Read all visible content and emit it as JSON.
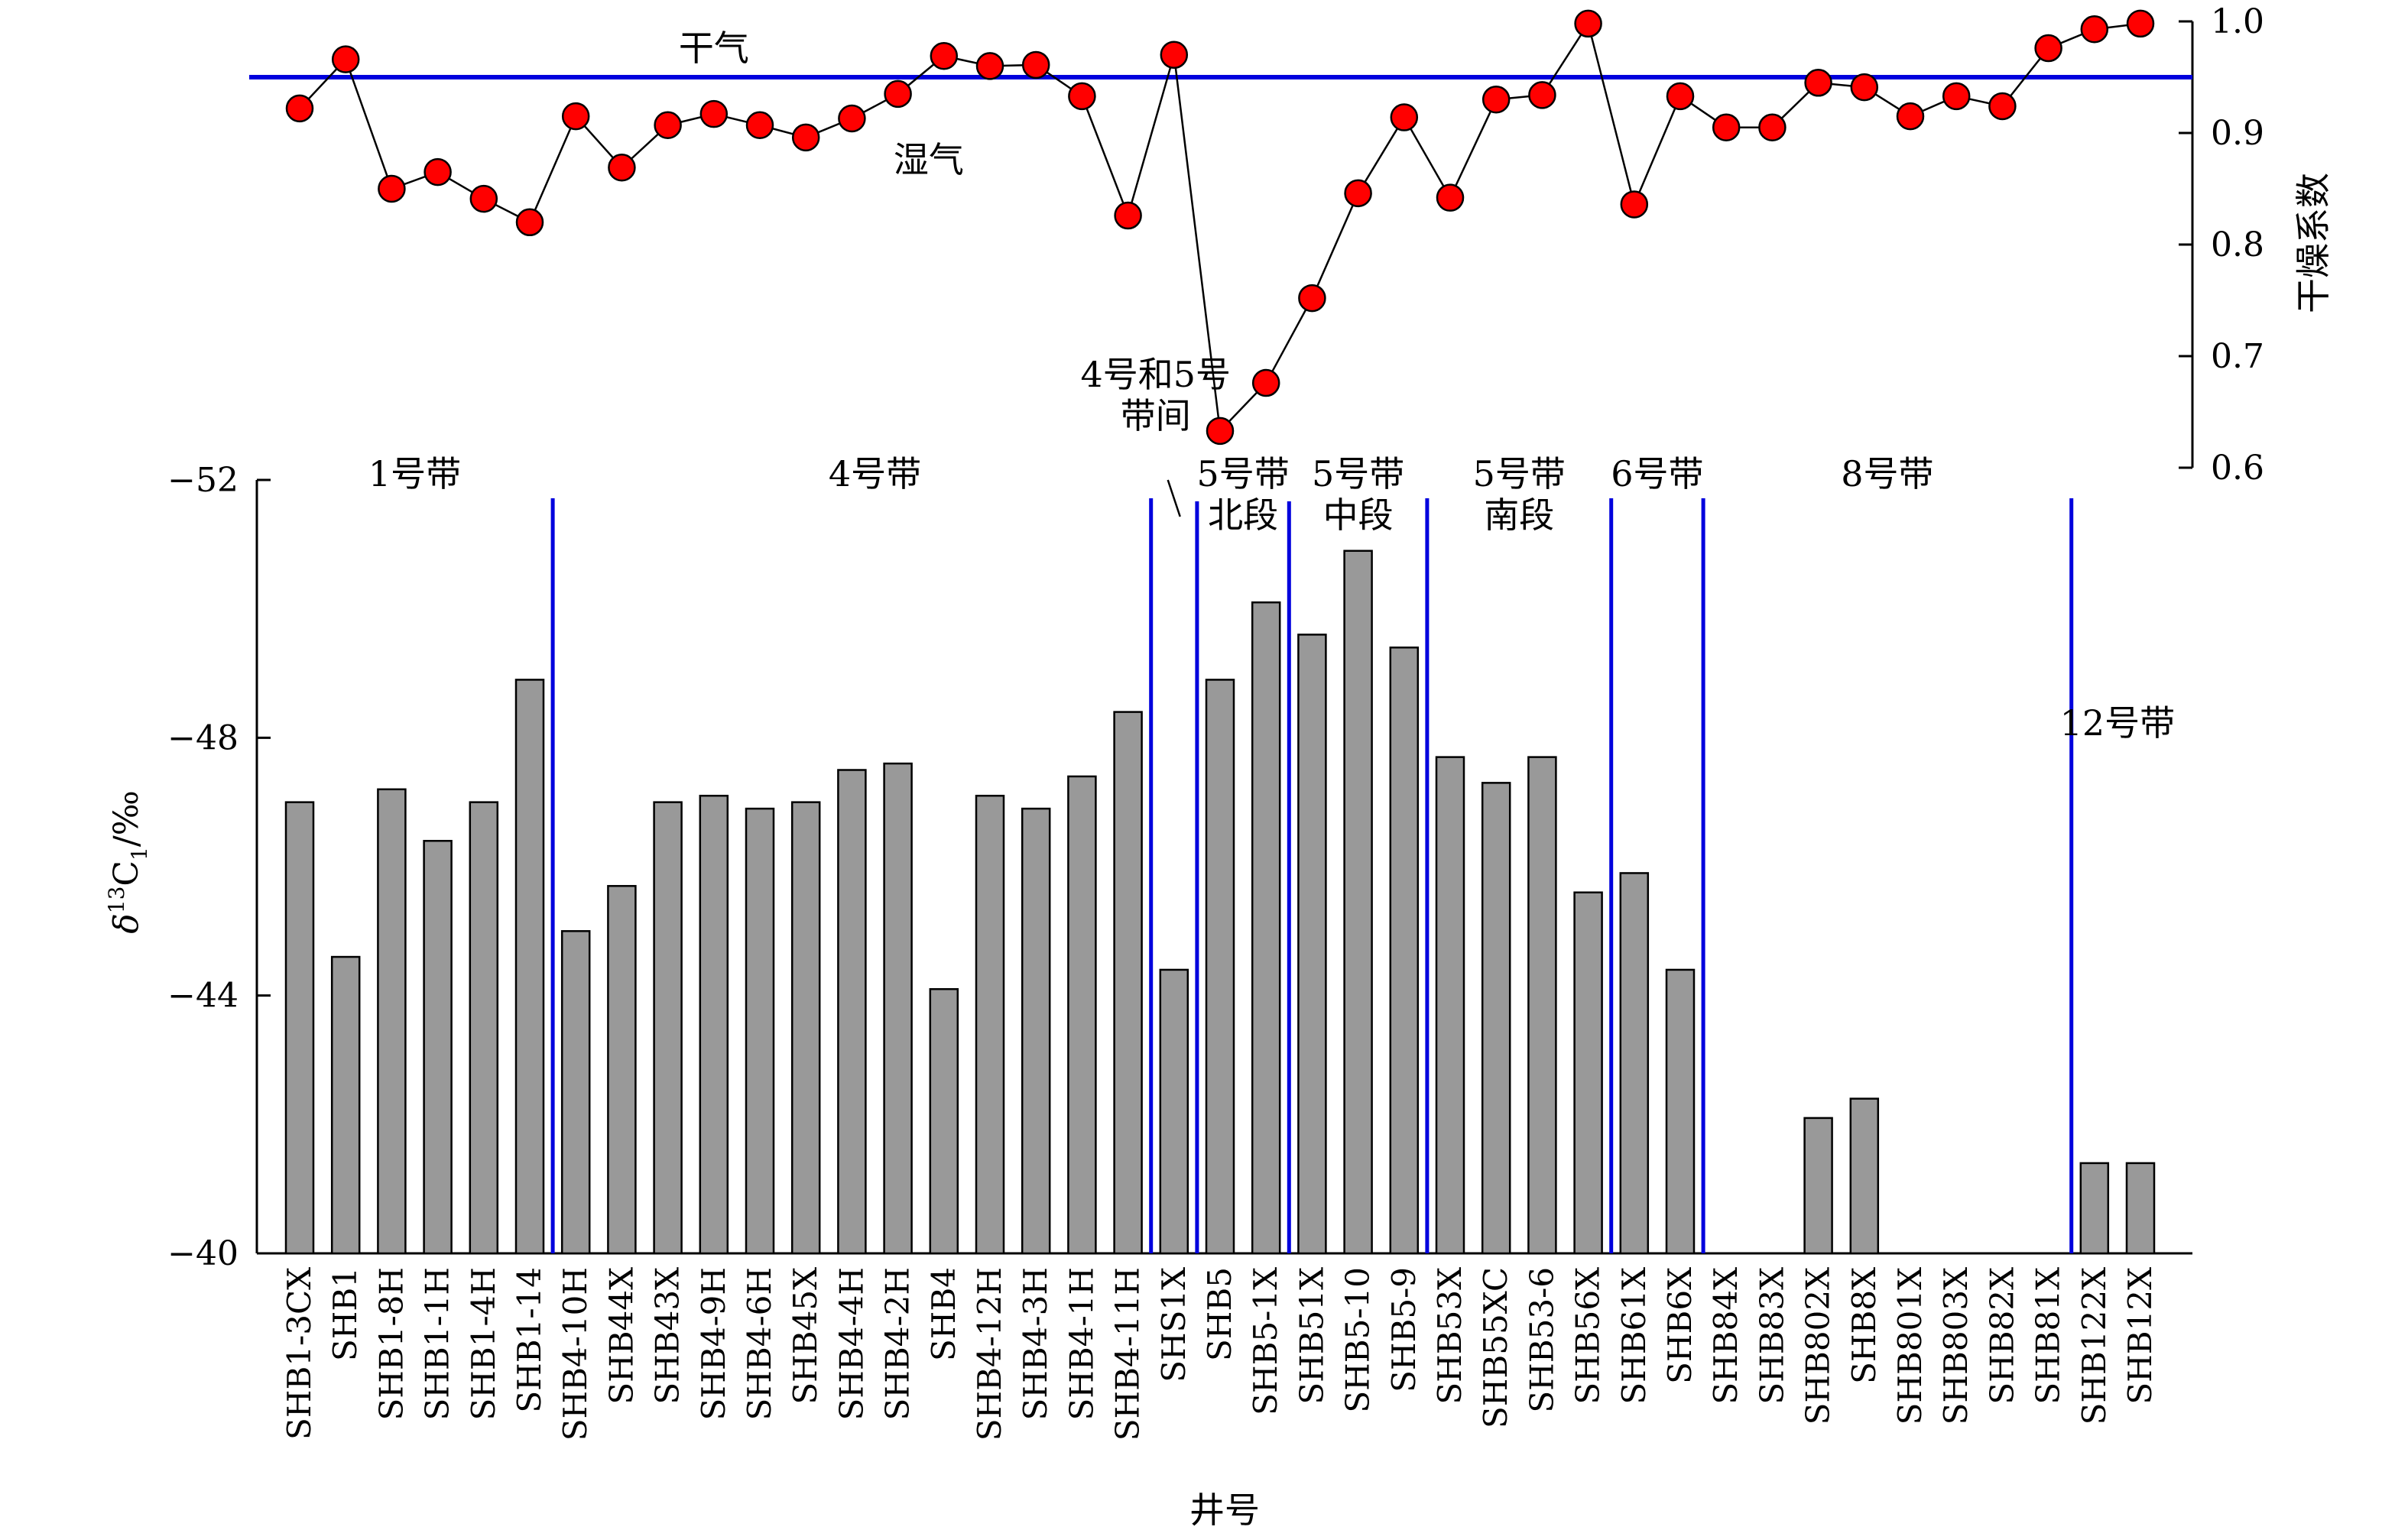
{
  "chart_data": [
    {
      "type": "bar",
      "ylabel": "δ13C1/‰",
      "ylabel_parts": {
        "delta": "δ",
        "sup": "13",
        "main": "C",
        "sub": "1",
        "unit": "/‰"
      },
      "xlabel": "井号",
      "ylim": [
        -52,
        -40
      ],
      "yticks": [
        -52,
        -48,
        -44,
        -40
      ],
      "ytick_labels": [
        "−52",
        "−48",
        "−44",
        "−40"
      ],
      "categories": [
        "SHB1-3CX",
        "SHB1",
        "SHB1-8H",
        "SHB1-1H",
        "SHB1-4H",
        "SHB1-14",
        "SHB4-10H",
        "SHB44X",
        "SHB43X",
        "SHB4-9H",
        "SHB4-6H",
        "SHB45X",
        "SHB4-4H",
        "SHB4-2H",
        "SHB4",
        "SHB4-12H",
        "SHB4-3H",
        "SHB4-1H",
        "SHB4-11H",
        "SHS1X",
        "SHB5",
        "SHB5-1X",
        "SHB51X",
        "SHB5-10",
        "SHB5-9",
        "SHB53X",
        "SHB55XC",
        "SHB53-6",
        "SHB56X",
        "SHB61X",
        "SHB6X",
        "SHB84X",
        "SHB83X",
        "SHB802X",
        "SHB8X",
        "SHB801X",
        "SHB803X",
        "SHB82X",
        "SHB81X",
        "SHB122X",
        "SHB12X"
      ],
      "values": [
        -47.0,
        -44.6,
        -47.2,
        -46.4,
        -47.0,
        -48.9,
        -45.0,
        -45.7,
        -47.0,
        -47.1,
        -46.9,
        -47.0,
        -47.5,
        -47.6,
        -44.1,
        -47.1,
        -46.9,
        -47.4,
        -48.4,
        -44.4,
        -48.9,
        -50.1,
        -49.6,
        -50.9,
        -49.4,
        -47.7,
        -47.3,
        -47.7,
        -45.6,
        -45.9,
        -44.4,
        null,
        null,
        -42.1,
        -42.4,
        null,
        null,
        null,
        null,
        -41.4,
        -41.4
      ],
      "zone_dividers_after": [
        5,
        18,
        19,
        21,
        24,
        28,
        30,
        38
      ],
      "zones": [
        {
          "lines": [
            "1号带"
          ],
          "center": 2.5,
          "row": "upper"
        },
        {
          "lines": [
            "4号带"
          ],
          "center": 12.5,
          "row": "upper"
        },
        {
          "lines": [
            "4号和5号",
            "带间"
          ],
          "center": 18.6,
          "row": "above",
          "pointer": true
        },
        {
          "lines": [
            "5号带",
            "北段"
          ],
          "center": 20.5,
          "row": "upper"
        },
        {
          "lines": [
            "5号带",
            "中段"
          ],
          "center": 23.0,
          "row": "upper"
        },
        {
          "lines": [
            "5号带",
            "南段"
          ],
          "center": 26.5,
          "row": "upper"
        },
        {
          "lines": [
            "6号带"
          ],
          "center": 29.5,
          "row": "upper"
        },
        {
          "lines": [
            "8号带"
          ],
          "center": 34.5,
          "row": "upper"
        },
        {
          "lines": [
            "12号带"
          ],
          "center": 39.5,
          "row": "middle"
        }
      ]
    },
    {
      "type": "line",
      "ylabel": "干燥系数",
      "ylim": [
        0.6,
        1.0
      ],
      "yticks": [
        0.6,
        0.7,
        0.8,
        0.9,
        1.0
      ],
      "ytick_labels": [
        "0.6",
        "0.7",
        "0.8",
        "0.9",
        "1.0"
      ],
      "x_categories": "same as bar chart",
      "values": [
        0.922,
        0.966,
        0.85,
        0.865,
        0.841,
        0.82,
        0.915,
        0.869,
        0.907,
        0.917,
        0.907,
        0.896,
        0.913,
        0.935,
        0.969,
        0.96,
        0.961,
        0.933,
        0.826,
        0.97,
        0.633,
        0.676,
        0.752,
        0.846,
        0.914,
        0.842,
        0.93,
        0.934,
        0.998,
        0.836,
        0.933,
        0.905,
        0.905,
        0.945,
        0.941,
        0.915,
        0.933,
        0.924,
        0.976,
        0.993,
        0.998
      ],
      "threshold": 0.95,
      "threshold_labels": {
        "above": "干气",
        "below": "湿气"
      },
      "threshold_label_positions": {
        "above_center": 9.5,
        "below_center": 14.5
      }
    }
  ],
  "colors": {
    "bar_fill": "#999999",
    "point_fill": "#ff0000",
    "divider": "#0000dd",
    "threshold": "#0000dd"
  }
}
